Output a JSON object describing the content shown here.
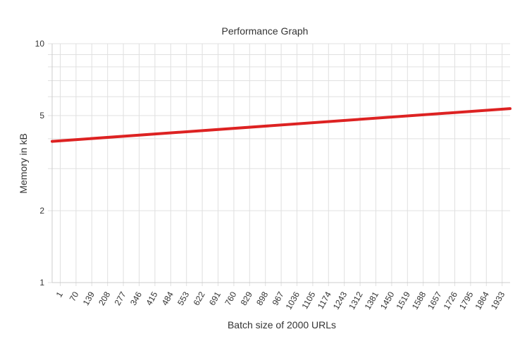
{
  "chart_data": {
    "type": "line",
    "title": "Performance Graph",
    "xlabel": "Batch size of 2000 URLs",
    "ylabel": "Memory in kB",
    "y_scale": "log",
    "ylim": [
      1,
      10
    ],
    "y_ticks": [
      1,
      2,
      5,
      10
    ],
    "x_tick_labels": [
      "1",
      "70",
      "139",
      "208",
      "277",
      "346",
      "415",
      "484",
      "553",
      "622",
      "691",
      "760",
      "829",
      "898",
      "967",
      "1036",
      "1105",
      "1174",
      "1243",
      "1312",
      "1381",
      "1450",
      "1519",
      "1588",
      "1657",
      "1726",
      "1795",
      "1864",
      "1933"
    ],
    "xlim": [
      1,
      2000
    ],
    "grid": true,
    "legend": "none",
    "series": [
      {
        "color": "#dd2222",
        "x": [
          1,
          2000
        ],
        "y": [
          3.9,
          5.35
        ]
      }
    ]
  }
}
